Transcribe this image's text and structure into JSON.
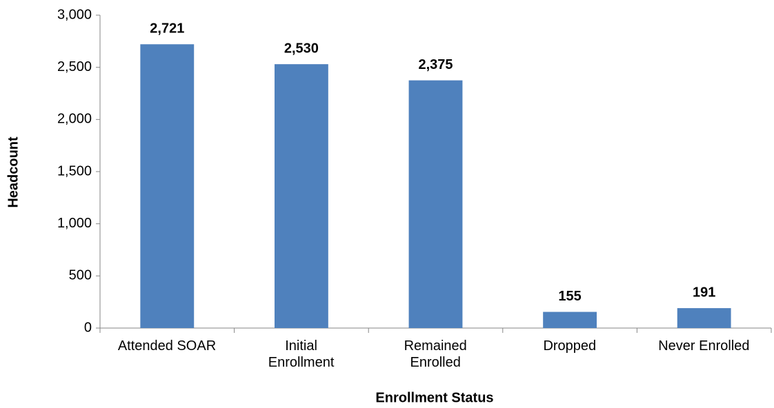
{
  "chart_data": {
    "type": "bar",
    "x_label": "Enrollment Status",
    "y_label": "Headcount",
    "categories": [
      "Attended SOAR",
      "Initial\nEnrollment",
      "Remained\nEnrolled",
      "Dropped",
      "Never Enrolled"
    ],
    "values": [
      2721,
      2530,
      2375,
      155,
      191
    ],
    "value_labels": [
      "2,721",
      "2,530",
      "2,375",
      "155",
      "191"
    ],
    "color": "#4f81bd",
    "ylim": [
      0,
      3000
    ],
    "yticks": [
      0,
      500,
      {
        "value": 1000,
        "label": "1,000"
      },
      {
        "value": 1500,
        "label": "1,500"
      },
      {
        "value": 2000,
        "label": "2,000"
      },
      {
        "value": 2500,
        "label": "2,500"
      },
      {
        "value": 3000,
        "label": "3,000"
      }
    ],
    "grid": false
  }
}
